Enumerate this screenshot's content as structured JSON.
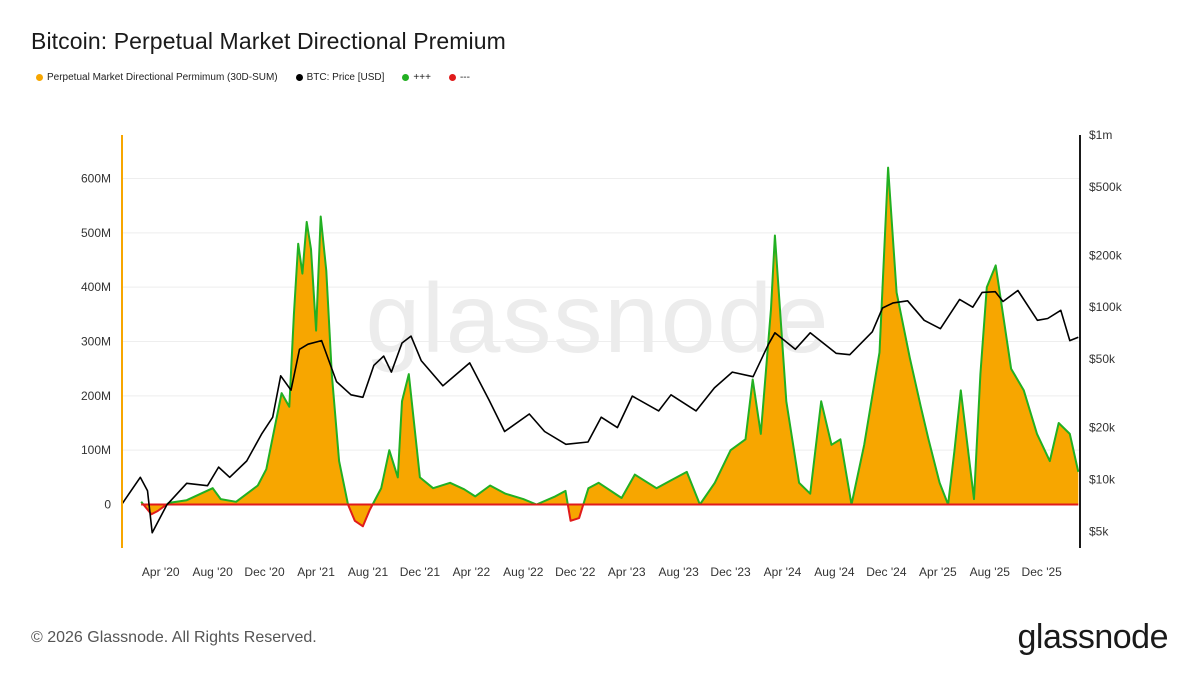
{
  "header": {
    "title": "Bitcoin: Perpetual Market Directional Premium"
  },
  "legend": [
    {
      "label": "Perpetual Market Directional Permimum (30D-SUM)",
      "color": "#f7a600"
    },
    {
      "label": "BTC: Price [USD]",
      "color": "#000000"
    },
    {
      "label": "+++",
      "color": "#22b022"
    },
    {
      "label": "---",
      "color": "#e01b1b"
    }
  ],
  "watermark": "glassnode",
  "footer": {
    "copyright": "© 2026 Glassnode. All Rights Reserved.",
    "brand": "glassnode"
  },
  "chart_data": {
    "type": "area",
    "title": "Bitcoin: Perpetual Market Directional Premium",
    "x_ticks": [
      "Apr '20",
      "Aug '20",
      "Dec '20",
      "Apr '21",
      "Aug '21",
      "Dec '21",
      "Apr '22",
      "Aug '22",
      "Dec '22",
      "Apr '23",
      "Aug '23",
      "Dec '23",
      "Apr '24",
      "Aug '24",
      "Dec '24",
      "Apr '25",
      "Aug '25",
      "Dec '25"
    ],
    "y_left_ticks": [
      {
        "value": 0,
        "label": "0"
      },
      {
        "value": 100,
        "label": "100M"
      },
      {
        "value": 200,
        "label": "200M"
      },
      {
        "value": 300,
        "label": "300M"
      },
      {
        "value": 400,
        "label": "400M"
      },
      {
        "value": 500,
        "label": "500M"
      },
      {
        "value": 600,
        "label": "600M"
      }
    ],
    "y_left_unit": "M USD",
    "y_left_range": [
      -80,
      680
    ],
    "y_right_ticks": [
      {
        "value": 5000,
        "label": "$5k"
      },
      {
        "value": 10000,
        "label": "$10k"
      },
      {
        "value": 20000,
        "label": "$20k"
      },
      {
        "value": 50000,
        "label": "$50k"
      },
      {
        "value": 100000,
        "label": "$100k"
      },
      {
        "value": 200000,
        "label": "$200k"
      },
      {
        "value": 500000,
        "label": "$500k"
      },
      {
        "value": 1000000,
        "label": "$1m"
      }
    ],
    "y_right_scale": "log",
    "y_right_range": [
      4000,
      1000000
    ],
    "x_range": [
      "2020-01-01",
      "2026-03-01"
    ],
    "legend_position": "top-left",
    "colors": {
      "premium_fill": "#f7a600",
      "positive_line": "#22b022",
      "negative_line": "#e01b1b",
      "price_line": "#000000"
    },
    "series": [
      {
        "name": "Perpetual Market Directional Permimum (30D-SUM)",
        "unit": "M",
        "x": [
          "2020-02-15",
          "2020-03-10",
          "2020-03-25",
          "2020-04-20",
          "2020-06-01",
          "2020-08-01",
          "2020-08-20",
          "2020-09-25",
          "2020-11-15",
          "2020-12-05",
          "2021-01-10",
          "2021-01-28",
          "2021-02-08",
          "2021-02-18",
          "2021-02-28",
          "2021-03-10",
          "2021-03-20",
          "2021-04-01",
          "2021-04-12",
          "2021-04-25",
          "2021-05-08",
          "2021-05-25",
          "2021-06-15",
          "2021-07-01",
          "2021-07-20",
          "2021-08-05",
          "2021-09-01",
          "2021-09-20",
          "2021-10-10",
          "2021-10-20",
          "2021-11-05",
          "2021-12-01",
          "2022-01-01",
          "2022-02-10",
          "2022-03-15",
          "2022-04-10",
          "2022-05-15",
          "2022-06-20",
          "2022-08-01",
          "2022-09-01",
          "2022-10-15",
          "2022-11-08",
          "2022-11-20",
          "2022-12-10",
          "2023-01-01",
          "2023-01-25",
          "2023-03-20",
          "2023-04-20",
          "2023-06-10",
          "2023-07-15",
          "2023-08-20",
          "2023-09-20",
          "2023-10-25",
          "2023-12-01",
          "2024-01-05",
          "2024-01-22",
          "2024-02-10",
          "2024-03-05",
          "2024-03-14",
          "2024-04-10",
          "2024-05-10",
          "2024-06-05",
          "2024-07-01",
          "2024-07-25",
          "2024-08-15",
          "2024-09-10",
          "2024-10-10",
          "2024-11-15",
          "2024-12-05",
          "2024-12-25",
          "2025-01-25",
          "2025-02-20",
          "2025-03-10",
          "2025-04-05",
          "2025-04-25",
          "2025-05-10",
          "2025-05-25",
          "2025-06-25",
          "2025-07-10",
          "2025-07-25",
          "2025-08-15",
          "2025-09-20",
          "2025-10-20",
          "2025-11-20",
          "2025-12-20",
          "2026-01-10",
          "2026-02-05",
          "2026-02-25"
        ],
        "values": [
          5,
          -18,
          -12,
          3,
          8,
          30,
          10,
          5,
          35,
          65,
          205,
          180,
          350,
          480,
          425,
          520,
          470,
          320,
          530,
          430,
          240,
          80,
          0,
          -30,
          -40,
          -10,
          30,
          100,
          50,
          190,
          240,
          50,
          30,
          40,
          28,
          15,
          35,
          20,
          10,
          0,
          15,
          25,
          -30,
          -25,
          30,
          40,
          12,
          55,
          30,
          45,
          60,
          0,
          40,
          100,
          120,
          230,
          130,
          360,
          495,
          190,
          40,
          20,
          190,
          110,
          120,
          0,
          110,
          280,
          620,
          390,
          270,
          180,
          120,
          40,
          0,
          100,
          210,
          10,
          240,
          400,
          440,
          250,
          210,
          130,
          80,
          150,
          130,
          60
        ]
      },
      {
        "name": "BTC: Price [USD]",
        "unit": "USD",
        "x": [
          "2020-01-01",
          "2020-02-13",
          "2020-03-01",
          "2020-03-12",
          "2020-04-15",
          "2020-06-01",
          "2020-07-20",
          "2020-08-15",
          "2020-09-10",
          "2020-10-20",
          "2020-11-25",
          "2020-12-20",
          "2021-01-08",
          "2021-02-01",
          "2021-02-21",
          "2021-03-13",
          "2021-04-14",
          "2021-05-19",
          "2021-06-22",
          "2021-07-20",
          "2021-08-15",
          "2021-09-07",
          "2021-09-25",
          "2021-10-20",
          "2021-11-10",
          "2021-12-04",
          "2022-01-24",
          "2022-03-28",
          "2022-05-12",
          "2022-06-18",
          "2022-08-15",
          "2022-09-20",
          "2022-11-09",
          "2022-12-31",
          "2023-01-31",
          "2023-03-10",
          "2023-04-14",
          "2023-06-15",
          "2023-07-14",
          "2023-09-11",
          "2023-10-24",
          "2023-12-05",
          "2024-01-23",
          "2024-02-28",
          "2024-03-14",
          "2024-05-01",
          "2024-06-05",
          "2024-08-05",
          "2024-09-06",
          "2024-10-29",
          "2024-11-22",
          "2024-12-17",
          "2025-01-20",
          "2025-02-28",
          "2025-04-07",
          "2025-05-22",
          "2025-06-22",
          "2025-07-14",
          "2025-08-14",
          "2025-09-01",
          "2025-10-06",
          "2025-11-21",
          "2025-12-15",
          "2026-01-15",
          "2026-02-05",
          "2026-02-25"
        ],
        "values": [
          7200,
          10300,
          8600,
          4900,
          7100,
          9500,
          9200,
          11800,
          10300,
          12800,
          18500,
          23000,
          40000,
          33000,
          57000,
          61000,
          64000,
          37000,
          31000,
          30000,
          46000,
          52000,
          42000,
          62000,
          68000,
          49000,
          35000,
          47500,
          29000,
          19000,
          24000,
          19000,
          16000,
          16500,
          23000,
          20000,
          30500,
          25000,
          31000,
          25000,
          34000,
          42000,
          39500,
          61000,
          71000,
          57000,
          71000,
          54000,
          53000,
          72000,
          99000,
          106000,
          109000,
          84000,
          75000,
          111000,
          100000,
          122000,
          123000,
          108000,
          125000,
          84000,
          86000,
          96000,
          64000,
          67000
        ]
      }
    ]
  }
}
